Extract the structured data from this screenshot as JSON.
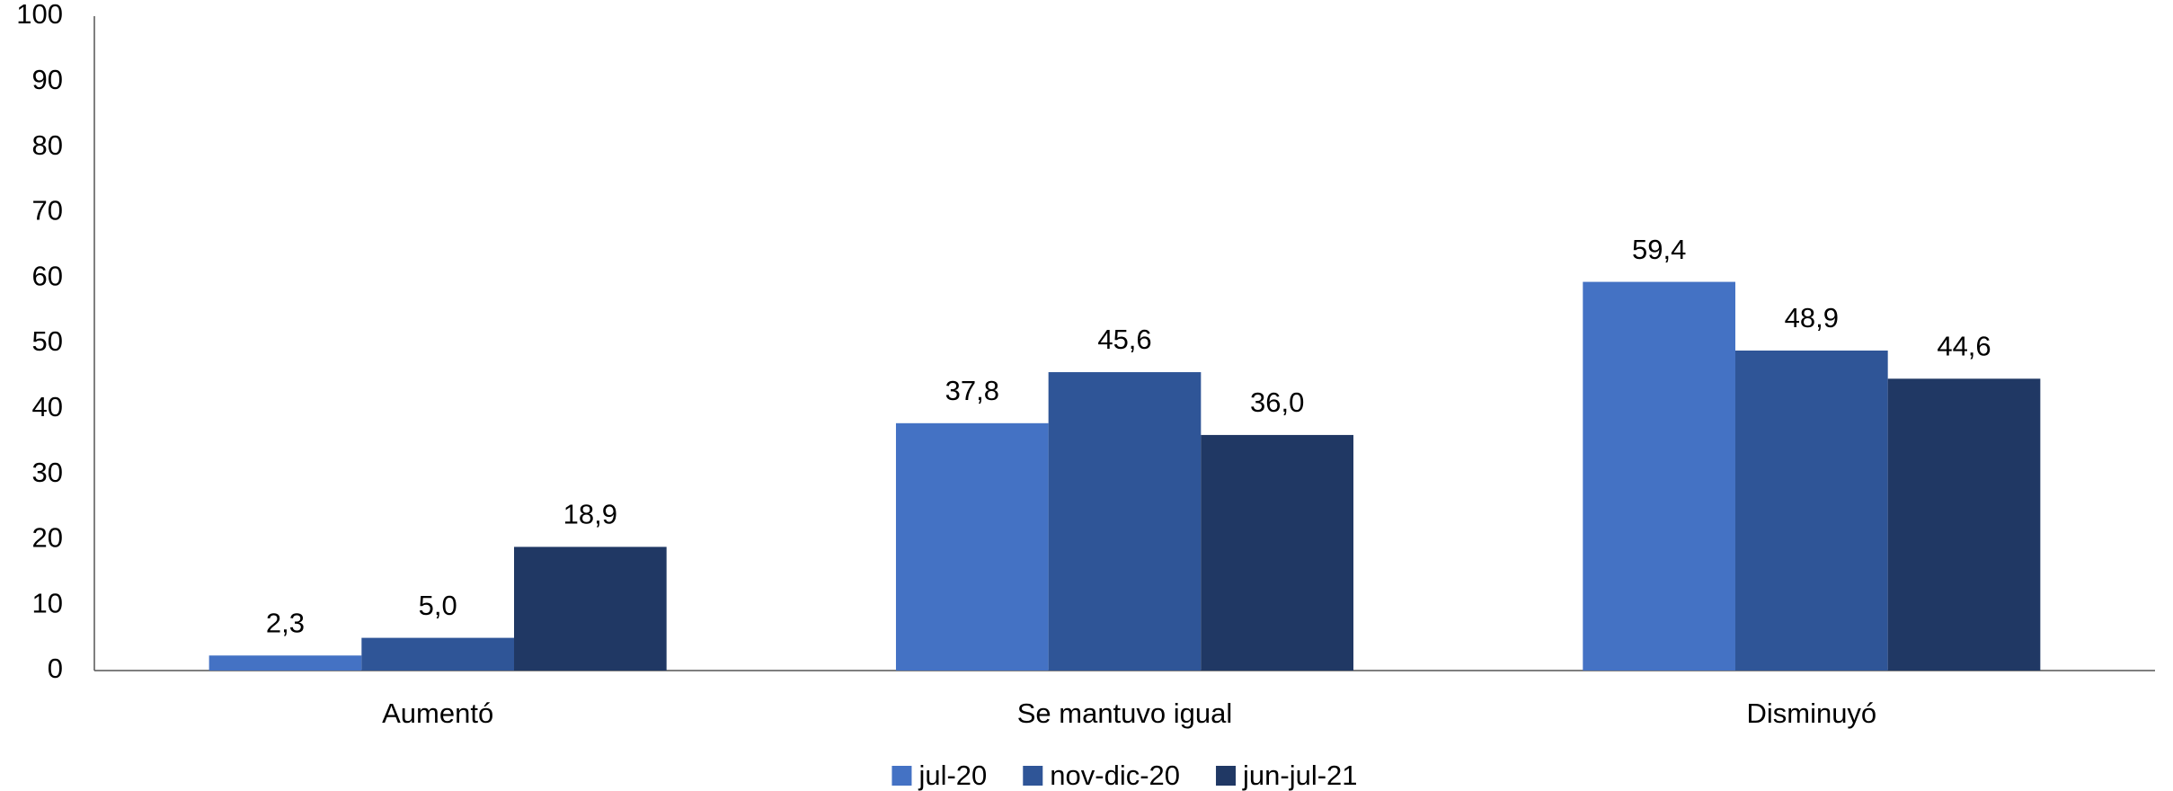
{
  "chart_data": {
    "type": "bar",
    "categories": [
      "Aumentó",
      "Se mantuvo igual",
      "Disminuyó"
    ],
    "series": [
      {
        "name": "jul-20",
        "color": "#4472c4",
        "values": [
          2.3,
          37.8,
          59.4
        ],
        "value_labels": [
          "2,3",
          "37,8",
          "59,4"
        ]
      },
      {
        "name": "nov-dic-20",
        "color": "#2f5597",
        "values": [
          5.0,
          45.6,
          48.9
        ],
        "value_labels": [
          "5,0",
          "45,6",
          "48,9"
        ]
      },
      {
        "name": "jun-jul-21",
        "color": "#203864",
        "values": [
          18.9,
          36.0,
          44.6
        ],
        "value_labels": [
          "18,9",
          "36,0",
          "44,6"
        ]
      }
    ],
    "ylim": [
      0,
      100
    ],
    "yticks": [
      0,
      10,
      20,
      30,
      40,
      50,
      60,
      70,
      80,
      90,
      100
    ],
    "grid": false,
    "legend": "bottom"
  }
}
